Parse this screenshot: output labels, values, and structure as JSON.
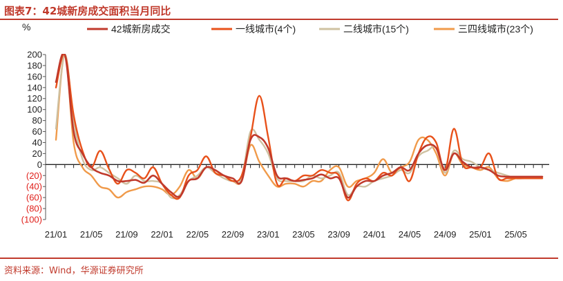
{
  "title": "图表7：42城新房成交面积当月同比",
  "source": "资料来源：Wind，华源证券研究所",
  "chart_data": {
    "type": "line",
    "ylabel": "%",
    "ylim": [
      -100,
      200
    ],
    "yticks": [
      200,
      180,
      160,
      140,
      120,
      100,
      80,
      60,
      40,
      20,
      0,
      -20,
      -40,
      -60,
      -80,
      -100
    ],
    "ytick_labels": [
      "200",
      "180",
      "160",
      "140",
      "120",
      "100",
      "80",
      "60",
      "40",
      "20",
      "0",
      "(20)",
      "(40)",
      "(60)",
      "(80)",
      "(100)"
    ],
    "x": [
      "21/01",
      "21/02",
      "21/03",
      "21/04",
      "21/05",
      "21/06",
      "21/07",
      "21/08",
      "21/09",
      "21/10",
      "21/11",
      "21/12",
      "22/01",
      "22/02",
      "22/03",
      "22/04",
      "22/05",
      "22/06",
      "22/07",
      "22/08",
      "22/09",
      "22/10",
      "22/11",
      "22/12",
      "23/01",
      "23/02",
      "23/03",
      "23/04",
      "23/05",
      "23/06",
      "23/07",
      "23/08",
      "23/09",
      "23/10",
      "23/11",
      "23/12",
      "24/01",
      "24/02",
      "24/03",
      "24/04",
      "24/05",
      "24/06",
      "24/07",
      "24/08",
      "24/09",
      "24/10",
      "24/11",
      "24/12",
      "25/01",
      "25/02",
      "25/03",
      "25/04",
      "25/05",
      "25/06",
      "25/07",
      "25/08"
    ],
    "xtick_labels": [
      "21/01",
      "21/05",
      "21/09",
      "22/01",
      "22/05",
      "22/09",
      "23/01",
      "23/05",
      "23/09",
      "24/01",
      "24/05",
      "24/09",
      "25/01",
      "25/05"
    ],
    "xtick_index": [
      0,
      4,
      8,
      12,
      16,
      20,
      24,
      28,
      32,
      36,
      40,
      44,
      48,
      52
    ],
    "legend_position": "top",
    "series": [
      {
        "name": "42城新房成交",
        "color": "#c0392b",
        "width": 2.6,
        "values": [
          150,
          200,
          60,
          20,
          -5,
          -15,
          -20,
          -30,
          -30,
          -28,
          -33,
          -20,
          -35,
          -50,
          -58,
          -30,
          -25,
          -5,
          -10,
          -20,
          -25,
          -30,
          45,
          50,
          30,
          -20,
          -25,
          -30,
          -28,
          -25,
          -18,
          -25,
          -25,
          -60,
          -40,
          -30,
          -30,
          -20,
          -15,
          -5,
          -10,
          20,
          35,
          30,
          -10,
          20,
          5,
          -5,
          -5,
          -10,
          -20,
          -22,
          -22,
          -22,
          -22,
          -22
        ]
      },
      {
        "name": "一线城市(4个)",
        "color": "#e8511a",
        "width": 2.4,
        "values": [
          140,
          200,
          90,
          25,
          -5,
          25,
          -8,
          -35,
          -10,
          -15,
          -25,
          -5,
          -35,
          -55,
          -60,
          -20,
          -10,
          15,
          -15,
          -20,
          -30,
          -20,
          50,
          125,
          50,
          -35,
          -25,
          -30,
          -20,
          -20,
          -10,
          -15,
          -20,
          -65,
          -35,
          -25,
          -30,
          -15,
          -20,
          -5,
          -30,
          20,
          50,
          40,
          -10,
          65,
          0,
          -5,
          -5,
          20,
          -25,
          -25,
          -25,
          -25,
          -25,
          -25
        ]
      },
      {
        "name": "二线城市(15个)",
        "color": "#cfc1a1",
        "width": 2.4,
        "values": [
          65,
          200,
          80,
          10,
          -10,
          -5,
          -15,
          -25,
          -35,
          -20,
          -30,
          -30,
          -35,
          -60,
          -55,
          -30,
          -20,
          -5,
          -15,
          -25,
          -30,
          -25,
          60,
          45,
          20,
          -25,
          -30,
          -30,
          -30,
          -20,
          -25,
          -20,
          -15,
          -55,
          -40,
          -40,
          -30,
          -25,
          -20,
          -10,
          -15,
          15,
          25,
          30,
          -15,
          25,
          10,
          5,
          -5,
          -10,
          -15,
          -20,
          -25,
          -25,
          -25,
          -25
        ]
      },
      {
        "name": "三四线城市(23个)",
        "color": "#f09a4a",
        "width": 2.4,
        "values": [
          45,
          200,
          40,
          -5,
          -20,
          -40,
          -45,
          -60,
          -50,
          -45,
          -40,
          -40,
          -45,
          -55,
          -40,
          -10,
          -25,
          -5,
          -15,
          -20,
          -30,
          -30,
          35,
          5,
          -20,
          -40,
          -35,
          -35,
          -40,
          -30,
          -30,
          -10,
          -5,
          -40,
          -30,
          -25,
          -15,
          10,
          -15,
          -5,
          5,
          45,
          45,
          20,
          -20,
          20,
          0,
          -5,
          -10,
          -5,
          -25,
          -30,
          -25,
          -25,
          -25,
          -25
        ]
      }
    ]
  }
}
